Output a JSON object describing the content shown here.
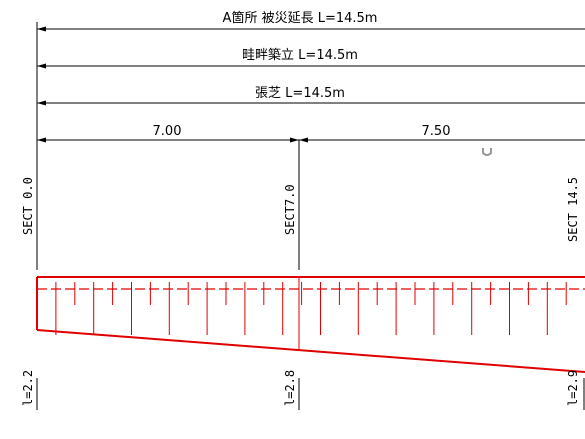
{
  "dimensions": {
    "overall_label": "A箇所 被災延長 L=14.5m",
    "ridge_label": "畦畔築立 L=14.5m",
    "turf_label": "張芝 L=14.5m",
    "segment_1": "7.00",
    "segment_2": "7.50"
  },
  "sections": {
    "left": "SECT 0.0",
    "middle": "SECT7.0",
    "right": "SECT 14.5"
  },
  "lengths": {
    "left": "l=2.2",
    "middle": "l=2.8",
    "right": "l=2.9"
  },
  "colors": {
    "line": "#000000",
    "red": "#e00000",
    "gray_mark": "#9a9a9a"
  }
}
